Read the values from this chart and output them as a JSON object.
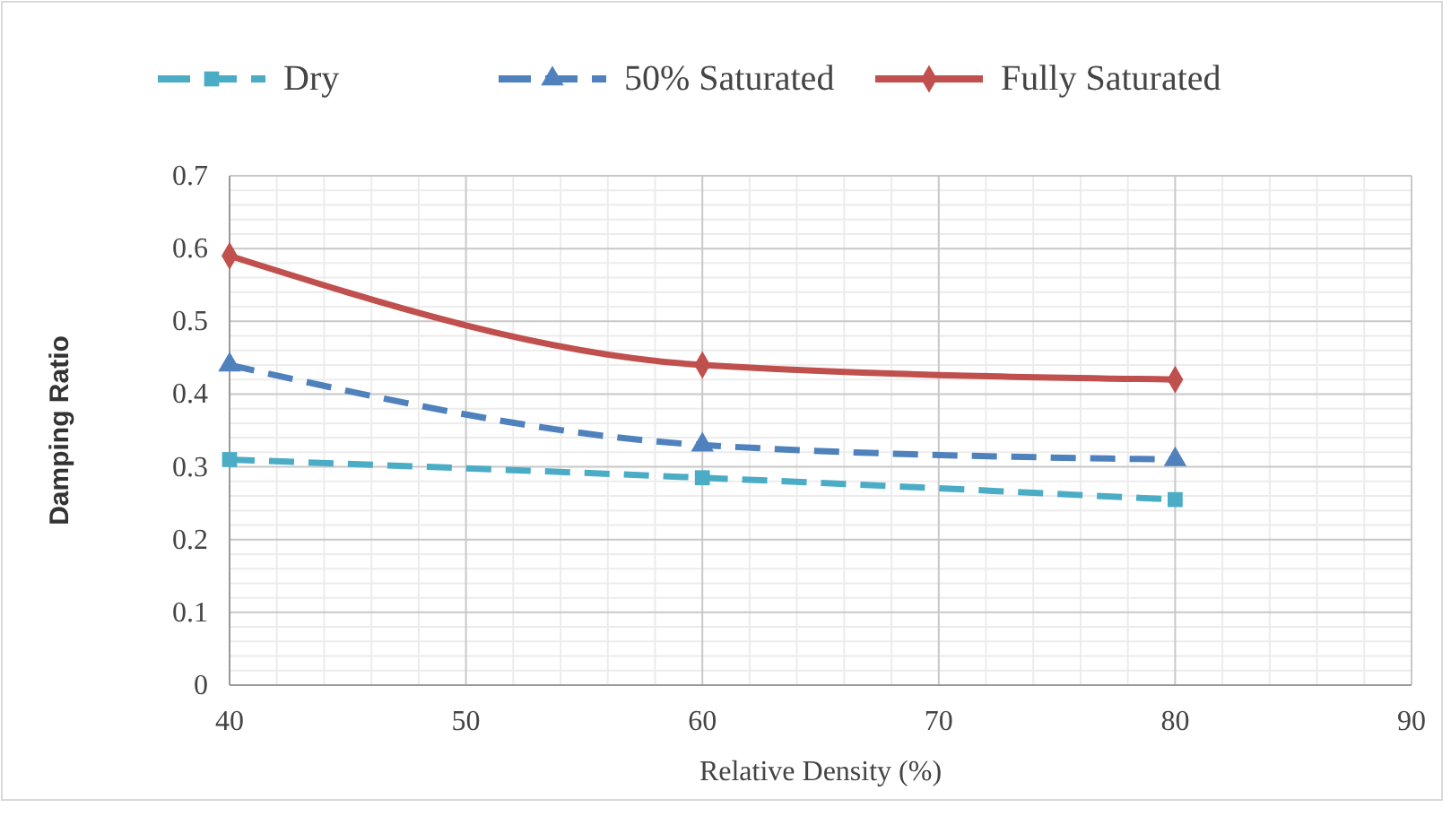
{
  "chart_data": {
    "type": "line",
    "xlabel": "Relative Density (%)",
    "ylabel": "Damping Ratio",
    "x": [
      40,
      60,
      80
    ],
    "series": [
      {
        "name": "Dry",
        "color": "#4bacc6",
        "values": [
          0.31,
          0.285,
          0.255
        ],
        "marker": "square",
        "line_style": "dashed"
      },
      {
        "name": "50% Saturated",
        "color": "#4f81bd",
        "values": [
          0.44,
          0.33,
          0.31
        ],
        "marker": "triangle",
        "line_style": "dashed"
      },
      {
        "name": "Fully Saturated",
        "color": "#c0504d",
        "values": [
          0.59,
          0.44,
          0.42
        ],
        "marker": "diamond",
        "line_style": "solid"
      }
    ],
    "xlim": [
      40,
      90
    ],
    "xticks": [
      40,
      50,
      60,
      70,
      80,
      90
    ],
    "ylim": [
      0,
      0.7
    ],
    "yticks": [
      0,
      0.1,
      0.2,
      0.3,
      0.4,
      0.5,
      0.6,
      0.7
    ],
    "grid": true,
    "legend": "top"
  }
}
